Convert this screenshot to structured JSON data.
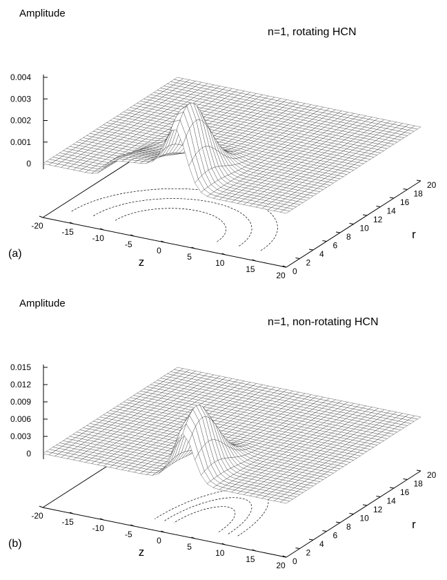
{
  "chart_data": [
    {
      "type": "surface3d",
      "panel_label": "(a)",
      "title": "n=1, rotating HCN",
      "zlabel": "Amplitude",
      "xlabel": "z",
      "ylabel": "r",
      "x_ticks": [
        "-20",
        "-15",
        "-10",
        "-5",
        "0",
        "5",
        "10",
        "15",
        "20"
      ],
      "r_ticks": [
        "0",
        "2",
        "4",
        "6",
        "8",
        "10",
        "12",
        "14",
        "16",
        "18",
        "20"
      ],
      "amp_ticks": [
        "0",
        "0.001",
        "0.002",
        "0.003",
        "0.004"
      ],
      "xlim": [
        -20,
        20
      ],
      "rlim": [
        0,
        20
      ],
      "amp_lim": [
        0,
        0.004
      ],
      "peak": {
        "z": 2,
        "r": 2,
        "amplitude": 0.0032
      },
      "ridge": {
        "z_from": -10,
        "z_to": 2,
        "amplitude": 0.0013
      },
      "contours_on_base": true
    },
    {
      "type": "surface3d",
      "panel_label": "(b)",
      "title": "n=1, non-rotating HCN",
      "zlabel": "Amplitude",
      "xlabel": "z",
      "ylabel": "r",
      "x_ticks": [
        "-20",
        "-15",
        "-10",
        "-5",
        "0",
        "5",
        "10",
        "15",
        "20"
      ],
      "r_ticks": [
        "0",
        "2",
        "4",
        "6",
        "8",
        "10",
        "12",
        "14",
        "16",
        "18",
        "20"
      ],
      "amp_ticks": [
        "0",
        "0.003",
        "0.006",
        "0.009",
        "0.012",
        "0.015"
      ],
      "xlim": [
        -20,
        20
      ],
      "rlim": [
        0,
        20
      ],
      "amp_lim": [
        0,
        0.015
      ],
      "peak": {
        "z": 3,
        "r": 2,
        "amplitude": 0.0118
      },
      "ridge": null,
      "contours_on_base": true
    }
  ]
}
